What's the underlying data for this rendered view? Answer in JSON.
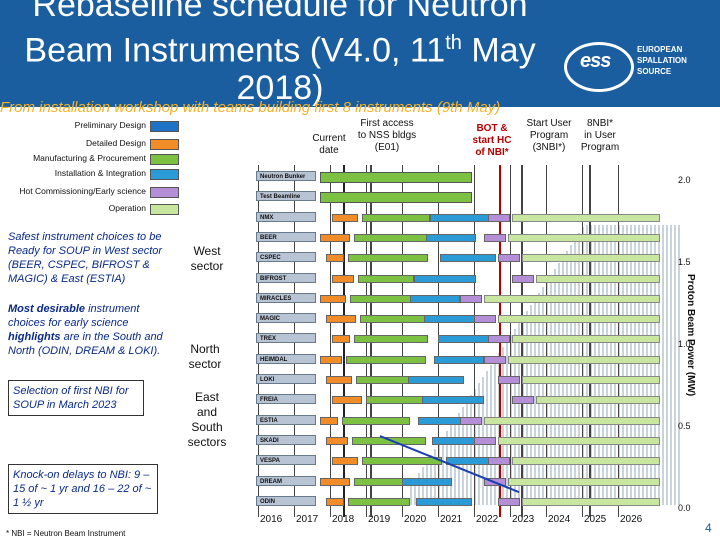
{
  "title": {
    "line1": "Rebaseline schedule for Neutron",
    "line2_pre": "Beam Instruments (V4.0, 11",
    "line2_sup": "th",
    "line2_post": " May",
    "line3": "2018)"
  },
  "logo": {
    "mark": "ess",
    "line1": "EUROPEAN",
    "line2": "SPALLATION",
    "line3": "SOURCE"
  },
  "subtitle": "From installation workshop with teams building first 8 instruments (9th May)",
  "legend": [
    {
      "label": "Preliminary Design",
      "color": "#1f73c4"
    },
    {
      "label": "Detailed Design",
      "color": "#f28c28"
    },
    {
      "label": "Manufacturing & Procurement",
      "color": "#7dc142"
    },
    {
      "label": "Installation & Integration",
      "color": "#2a9bd6"
    },
    {
      "label": "Hot Commissioning/Early science",
      "color": "#b58ed8"
    },
    {
      "label": "Operation",
      "color": "#c8e6a0"
    }
  ],
  "annotations": {
    "current_date": "Current\ndate",
    "first_access": "First access\nto NSS bldgs\n(E01)",
    "bot": "BOT &\nstart HC\nof NBI*",
    "start_user": "Start User\nProgram\n(3NBI*)",
    "eight_nbi": "8NBI*\nin User\nProgram"
  },
  "notes": {
    "n1": "Safest instrument choices to be Ready for SOUP in West sector (BEER, CSPEC, BIFROST & MAGIC) & East (ESTIA)",
    "n2_bold": "Most desirable",
    "n2_a": " instrument choices for early science ",
    "n2_bold2": "highlights",
    "n2_b": " are in the South and North (ODIN, DREAM & LOKI).",
    "n3": "Selection of first NBI for SOUP in March 2023",
    "n4": "Knock-on delays to NBI: 9 – 15 of ~ 1 yr and 16 – 22 of ~ 1 ½ yr"
  },
  "sectors": {
    "west": "West\nsector",
    "north": "North\nsector",
    "east_south": "East\nand\nSouth\nsectors"
  },
  "footnote": "* NBI = Neutron Beam Instrument",
  "page_number": "4",
  "chart_data": {
    "type": "gantt",
    "rows": [
      {
        "name": "Neutron Bunker",
        "group": "infrastructure"
      },
      {
        "name": "Test Beamline",
        "group": "infrastructure"
      },
      {
        "name": "NMX",
        "group": "west"
      },
      {
        "name": "BEER",
        "group": "west"
      },
      {
        "name": "CSPEC",
        "group": "west"
      },
      {
        "name": "BIFROST",
        "group": "west"
      },
      {
        "name": "MIRACLES",
        "group": "west"
      },
      {
        "name": "MAGIC",
        "group": "west"
      },
      {
        "name": "TREX",
        "group": "west"
      },
      {
        "name": "HEIMDAL",
        "group": "west"
      },
      {
        "name": "LOKI",
        "group": "north"
      },
      {
        "name": "FREIA",
        "group": "north"
      },
      {
        "name": "ESTIA",
        "group": "east_south"
      },
      {
        "name": "SKADI",
        "group": "east_south"
      },
      {
        "name": "VESPA",
        "group": "east_south"
      },
      {
        "name": "DREAM",
        "group": "east_south"
      },
      {
        "name": "ODIN",
        "group": "east_south"
      }
    ],
    "x_years": [
      "2016",
      "2017",
      "2018",
      "2019",
      "2020",
      "2021",
      "2022",
      "2023",
      "2024",
      "2025",
      "2026"
    ],
    "y2_label": "Proton Beam Power (MW)",
    "y2_ticks": [
      "2.0",
      "1.5",
      "1.0",
      "0.5",
      "0.0"
    ],
    "y2_range": [
      0,
      2.0
    ],
    "phase_colors": {
      "prelim": "#1f73c4",
      "detail": "#f28c28",
      "manuf": "#7dc142",
      "install": "#2a9bd6",
      "hot": "#b58ed8",
      "op": "#c8e6a0"
    }
  }
}
